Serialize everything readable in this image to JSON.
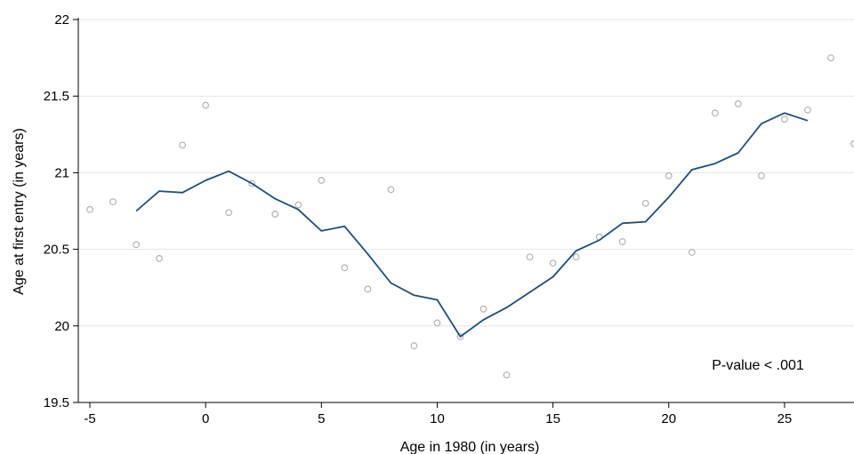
{
  "chart_data": {
    "type": "scatter",
    "title": "",
    "xlabel": "Age in 1980 (in years)",
    "ylabel": "Age at first entry (in years)",
    "xlim": [
      -5.5,
      28
    ],
    "ylim": [
      19.5,
      22
    ],
    "xticks": [
      -5,
      0,
      5,
      10,
      15,
      20,
      25
    ],
    "yticks": [
      19.5,
      20,
      20.5,
      21,
      21.5,
      22
    ],
    "grid": "horizontal",
    "annotation": "P-value < .001",
    "colors": {
      "line": "#1f4e79",
      "points": "#b3b3b3",
      "grid": "#e6e6e6"
    },
    "series": [
      {
        "type": "scatter",
        "x": [
          -5,
          -4,
          -3,
          -2,
          -1,
          0,
          1,
          2,
          3,
          4,
          5,
          6,
          7,
          8,
          9,
          10,
          11,
          12,
          13,
          14,
          15,
          16,
          17,
          18,
          19,
          20,
          21,
          22,
          23,
          24,
          25,
          26,
          27,
          28
        ],
        "y": [
          20.76,
          20.81,
          20.53,
          20.44,
          21.18,
          21.44,
          20.74,
          20.93,
          20.73,
          20.79,
          20.95,
          20.38,
          20.24,
          20.89,
          19.87,
          20.02,
          19.93,
          20.11,
          19.68,
          20.45,
          20.41,
          20.45,
          20.58,
          20.55,
          20.8,
          20.98,
          20.48,
          21.39,
          21.45,
          20.98,
          21.35,
          21.41,
          21.75,
          21.19
        ]
      },
      {
        "type": "line",
        "x": [
          -3,
          -2,
          -1,
          0,
          1,
          2,
          3,
          4,
          5,
          6,
          7,
          8,
          9,
          10,
          11,
          12,
          13,
          14,
          15,
          16,
          17,
          18,
          19,
          20,
          21,
          22,
          23,
          24,
          25,
          26
        ],
        "y": [
          20.75,
          20.88,
          20.87,
          20.95,
          21.01,
          20.93,
          20.83,
          20.76,
          20.62,
          20.65,
          20.47,
          20.28,
          20.2,
          20.17,
          19.93,
          20.04,
          20.12,
          20.22,
          20.32,
          20.49,
          20.56,
          20.67,
          20.68,
          20.84,
          21.02,
          21.06,
          21.13,
          21.32,
          21.39,
          21.34
        ]
      }
    ]
  }
}
